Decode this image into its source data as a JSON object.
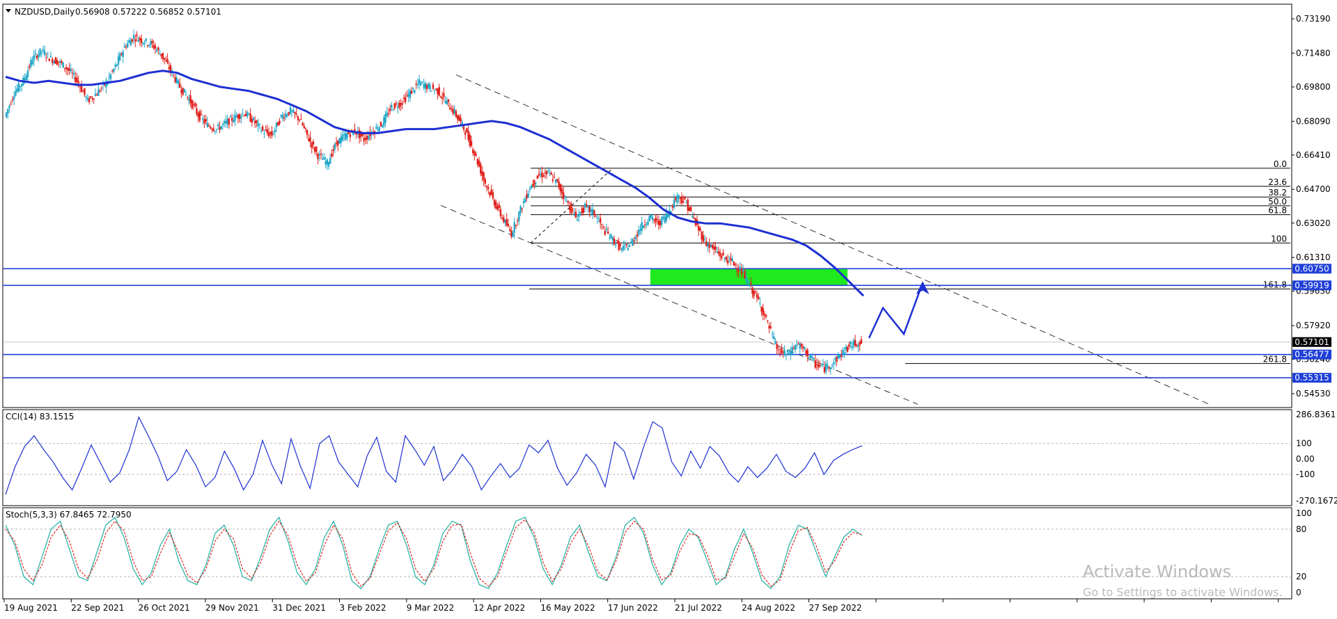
{
  "header": {
    "symbol": "NZDUSD,Daily",
    "ohlc": "0.56908 0.57222 0.56852 0.57101"
  },
  "chart_data": {
    "type": "line",
    "price_axis": {
      "range": [
        0.5385,
        0.737
      ],
      "ticks": [
        "0.73190",
        "0.71480",
        "0.69800",
        "0.68090",
        "0.66410",
        "0.64700",
        "0.63020",
        "0.61310",
        "0.59630",
        "0.57920",
        "0.56240",
        "0.54530"
      ]
    },
    "time_axis": {
      "labels": [
        "19 Aug 2021",
        "22 Sep 2021",
        "26 Oct 2021",
        "29 Nov 2021",
        "31 Dec 2021",
        "3 Feb 2022",
        "9 Mar 2022",
        "12 Apr 2022",
        "16 May 2022",
        "17 Jun 2022",
        "21 Jul 2022",
        "24 Aug 2022",
        "27 Sep 2022"
      ]
    },
    "price_series": {
      "name": "",
      "points": [
        [
          0.683
        ],
        [
          0.695
        ],
        [
          0.701
        ],
        [
          0.712
        ],
        [
          0.716
        ],
        [
          0.712
        ],
        [
          0.71
        ],
        [
          0.706
        ],
        [
          0.7
        ],
        [
          0.691
        ],
        [
          0.695
        ],
        [
          0.7
        ],
        [
          0.708
        ],
        [
          0.718
        ],
        [
          0.723
        ],
        [
          0.721
        ],
        [
          0.719
        ],
        [
          0.714
        ],
        [
          0.706
        ],
        [
          0.698
        ],
        [
          0.692
        ],
        [
          0.684
        ],
        [
          0.679
        ],
        [
          0.677
        ],
        [
          0.68
        ],
        [
          0.683
        ],
        [
          0.685
        ],
        [
          0.681
        ],
        [
          0.676
        ],
        [
          0.674
        ],
        [
          0.683
        ],
        [
          0.686
        ],
        [
          0.682
        ],
        [
          0.672
        ],
        [
          0.664
        ],
        [
          0.66
        ],
        [
          0.67
        ],
        [
          0.674
        ],
        [
          0.676
        ],
        [
          0.672
        ],
        [
          0.676
        ],
        [
          0.68
        ],
        [
          0.688
        ],
        [
          0.69
        ],
        [
          0.695
        ],
        [
          0.7
        ],
        [
          0.698
        ],
        [
          0.696
        ],
        [
          0.69
        ],
        [
          0.684
        ],
        [
          0.676
        ],
        [
          0.665
        ],
        [
          0.652
        ],
        [
          0.642
        ],
        [
          0.633
        ],
        [
          0.625
        ],
        [
          0.637
        ],
        [
          0.648
        ],
        [
          0.654
        ],
        [
          0.655
        ],
        [
          0.65
        ],
        [
          0.641
        ],
        [
          0.633
        ],
        [
          0.638
        ],
        [
          0.635
        ],
        [
          0.627
        ],
        [
          0.622
        ],
        [
          0.617
        ],
        [
          0.62
        ],
        [
          0.628
        ],
        [
          0.633
        ],
        [
          0.63
        ],
        [
          0.635
        ],
        [
          0.644
        ],
        [
          0.64
        ],
        [
          0.63
        ],
        [
          0.621
        ],
        [
          0.617
        ],
        [
          0.613
        ],
        [
          0.611
        ],
        [
          0.606
        ],
        [
          0.598
        ],
        [
          0.59
        ],
        [
          0.578
        ],
        [
          0.566
        ],
        [
          0.565
        ],
        [
          0.57
        ],
        [
          0.566
        ],
        [
          0.56
        ],
        [
          0.558
        ],
        [
          0.561
        ],
        [
          0.566
        ],
        [
          0.57
        ],
        [
          0.571
        ]
      ]
    },
    "moving_average": {
      "name": "",
      "points": [
        [
          0.703
        ],
        [
          0.701
        ],
        [
          0.7
        ],
        [
          0.701
        ],
        [
          0.7
        ],
        [
          0.699
        ],
        [
          0.699
        ],
        [
          0.7
        ],
        [
          0.701
        ],
        [
          0.703
        ],
        [
          0.705
        ],
        [
          0.706
        ],
        [
          0.705
        ],
        [
          0.702
        ],
        [
          0.7
        ],
        [
          0.698
        ],
        [
          0.697
        ],
        [
          0.696
        ],
        [
          0.694
        ],
        [
          0.692
        ],
        [
          0.689
        ],
        [
          0.686
        ],
        [
          0.682
        ],
        [
          0.678
        ],
        [
          0.676
        ],
        [
          0.675
        ],
        [
          0.675
        ],
        [
          0.676
        ],
        [
          0.677
        ],
        [
          0.677
        ],
        [
          0.677
        ],
        [
          0.678
        ],
        [
          0.679
        ],
        [
          0.68
        ],
        [
          0.681
        ],
        [
          0.68
        ],
        [
          0.678
        ],
        [
          0.675
        ],
        [
          0.672
        ],
        [
          0.668
        ],
        [
          0.664
        ],
        [
          0.66
        ],
        [
          0.656
        ],
        [
          0.652
        ],
        [
          0.648
        ],
        [
          0.643
        ],
        [
          0.637
        ],
        [
          0.633
        ],
        [
          0.631
        ],
        [
          0.63
        ],
        [
          0.63
        ],
        [
          0.629
        ],
        [
          0.628
        ],
        [
          0.626
        ],
        [
          0.624
        ],
        [
          0.622
        ],
        [
          0.619
        ],
        [
          0.614
        ],
        [
          0.608
        ],
        [
          0.601
        ],
        [
          0.594
        ]
      ]
    },
    "fibonacci": {
      "levels": [
        {
          "label": "0.0",
          "price": 0.6575
        },
        {
          "label": "23.6",
          "price": 0.6485
        },
        {
          "label": "38.2",
          "price": 0.6432
        },
        {
          "label": "50.0",
          "price": 0.6388
        },
        {
          "label": "61.8",
          "price": 0.6344
        },
        {
          "label": "100",
          "price": 0.6203
        },
        {
          "label": "161.8",
          "price": 0.5974
        },
        {
          "label": "261.8",
          "price": 0.5603
        }
      ]
    },
    "horizontal_levels": [
      {
        "label": "0.60750",
        "price": 0.6075,
        "color": "#1f3fd8"
      },
      {
        "label": "0.59919",
        "price": 0.5992,
        "color": "#1f3fd8"
      },
      {
        "label": "0.56477",
        "price": 0.5648,
        "color": "#1f3fd8"
      },
      {
        "label": "0.55315",
        "price": 0.5532,
        "color": "#1f3fd8"
      },
      {
        "label": "0.57101",
        "price": 0.571,
        "color": "#000000"
      }
    ],
    "zone": {
      "color": "#1eea1e",
      "price_top": 0.6075,
      "price_bottom": 0.5992
    },
    "projection": {
      "color": "#1c2fd1",
      "points": [
        [
          0.573
        ],
        [
          0.588
        ],
        [
          0.575
        ],
        [
          0.6005
        ]
      ]
    },
    "cci": {
      "title": "CCI(14) 83.1515",
      "range": [
        -270.1672,
        286.8361
      ],
      "ticks": [
        "286.8361",
        "100",
        "0.00",
        "-100",
        "-270.1672"
      ],
      "values": [
        -230,
        -50,
        80,
        150,
        60,
        -20,
        -120,
        -200,
        -60,
        90,
        -30,
        -150,
        -90,
        60,
        270,
        150,
        20,
        -140,
        -80,
        60,
        -40,
        -180,
        -120,
        50,
        -60,
        -200,
        -100,
        120,
        -40,
        -160,
        130,
        -50,
        -190,
        100,
        150,
        -20,
        -100,
        -180,
        20,
        140,
        -80,
        -150,
        150,
        60,
        -40,
        80,
        -140,
        -70,
        30,
        -50,
        -200,
        -110,
        -30,
        -120,
        -60,
        90,
        40,
        120,
        -60,
        -170,
        -90,
        30,
        -40,
        -180,
        110,
        50,
        -130,
        70,
        240,
        200,
        -20,
        -110,
        50,
        -60,
        80,
        20,
        -90,
        -150,
        -50,
        -120,
        -60,
        30,
        -80,
        -120,
        -60,
        40,
        -100,
        -10,
        30,
        60,
        85
      ]
    },
    "stochastic": {
      "title": "Stoch(5,3,3) 67.8465 72.7950",
      "range": [
        0,
        100
      ],
      "ticks": [
        "100",
        "80",
        "20",
        "0"
      ],
      "main": [
        85,
        60,
        20,
        10,
        45,
        80,
        90,
        55,
        20,
        15,
        50,
        85,
        95,
        70,
        30,
        10,
        25,
        60,
        80,
        40,
        15,
        10,
        35,
        75,
        85,
        60,
        20,
        15,
        45,
        80,
        95,
        65,
        25,
        10,
        30,
        70,
        90,
        60,
        15,
        5,
        20,
        55,
        85,
        90,
        60,
        20,
        10,
        35,
        75,
        90,
        85,
        40,
        10,
        5,
        25,
        60,
        90,
        95,
        70,
        30,
        10,
        35,
        70,
        85,
        50,
        20,
        15,
        45,
        85,
        95,
        75,
        35,
        10,
        25,
        60,
        80,
        70,
        40,
        10,
        20,
        55,
        80,
        50,
        15,
        5,
        20,
        60,
        85,
        80,
        50,
        20,
        45,
        70,
        80,
        72
      ],
      "signal": [
        80,
        65,
        30,
        15,
        35,
        70,
        85,
        65,
        30,
        18,
        40,
        75,
        90,
        78,
        40,
        15,
        20,
        50,
        75,
        50,
        22,
        12,
        30,
        65,
        80,
        68,
        30,
        18,
        38,
        72,
        90,
        72,
        35,
        14,
        25,
        60,
        85,
        68,
        25,
        8,
        18,
        48,
        78,
        88,
        68,
        30,
        14,
        30,
        65,
        85,
        86,
        50,
        18,
        8,
        20,
        52,
        82,
        92,
        76,
        38,
        14,
        30,
        62,
        80,
        58,
        26,
        16,
        40,
        76,
        90,
        80,
        42,
        16,
        22,
        52,
        74,
        72,
        48,
        16,
        18,
        46,
        74,
        56,
        22,
        8,
        16,
        50,
        78,
        82,
        58,
        26,
        40,
        64,
        76,
        73
      ]
    },
    "watermark": {
      "line1": "Activate Windows",
      "line2": "Go to Settings to activate Windows."
    }
  }
}
